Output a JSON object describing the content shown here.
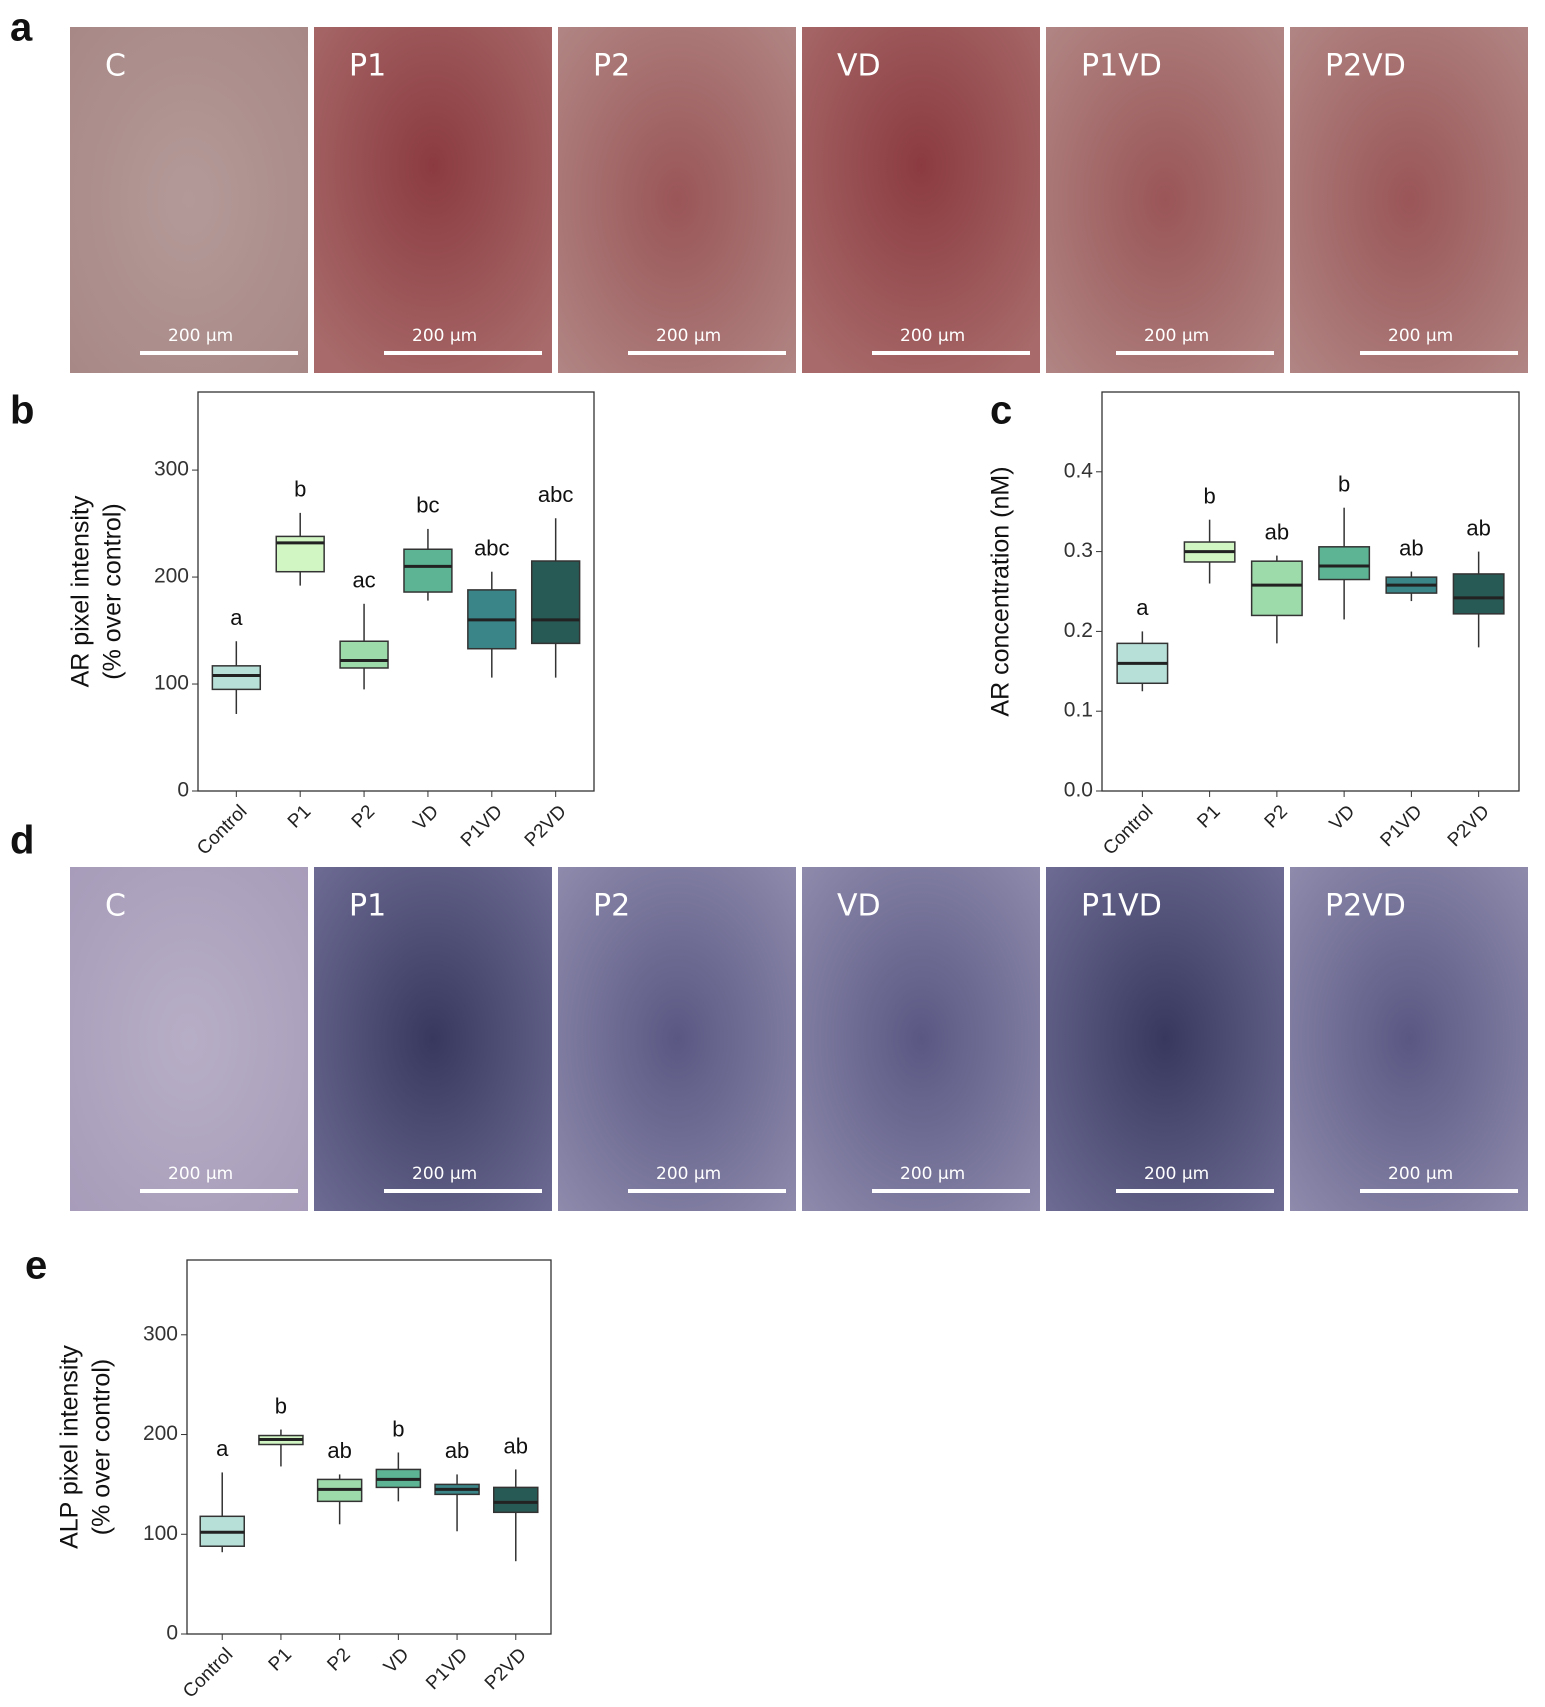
{
  "panel_a": {
    "letter": "a",
    "labels": [
      "C",
      "P1",
      "P2",
      "VD",
      "P1VD",
      "P2VD"
    ],
    "scale_bars": [
      "200 µm",
      "200 µm",
      "200 µm",
      "200 µm",
      "200 µm",
      "200 µm"
    ]
  },
  "panel_d": {
    "letter": "d",
    "labels": [
      "C",
      "P1",
      "P2",
      "VD",
      "P1VD",
      "P2VD"
    ],
    "scale_bars": [
      "200 µm",
      "200 µm",
      "200 µm",
      "200 µm",
      "200 µm",
      "200 µm"
    ]
  },
  "chart_data": [
    {
      "type": "box",
      "panel": "b",
      "ylabel": [
        "AR pixel intensity",
        "(% over control)"
      ],
      "categories": [
        "Control",
        "P1",
        "P2",
        "VD",
        "P1VD",
        "P2VD"
      ],
      "whisker_low": [
        72,
        192,
        95,
        178,
        106,
        106
      ],
      "q1": [
        95,
        205,
        115,
        186,
        133,
        138
      ],
      "median": [
        108,
        232,
        122,
        210,
        160,
        160
      ],
      "q3": [
        117,
        238,
        140,
        226,
        188,
        215
      ],
      "whisker_high": [
        140,
        260,
        175,
        245,
        205,
        255
      ],
      "letters": [
        "a",
        "b",
        "ac",
        "bc",
        "abc",
        "abc"
      ],
      "colors": [
        "#b7e0d8",
        "#d2f5c4",
        "#9edbaa",
        "#5cb494",
        "#3a8587",
        "#285a55"
      ],
      "ylim": [
        0,
        373
      ],
      "yticks": [
        0,
        100,
        200,
        300
      ]
    },
    {
      "type": "box",
      "panel": "c",
      "ylabel": [
        "AR concentration (nM)"
      ],
      "categories": [
        "Control",
        "P1",
        "P2",
        "VD",
        "P1VD",
        "P2VD"
      ],
      "whisker_low": [
        0.125,
        0.26,
        0.185,
        0.215,
        0.238,
        0.18
      ],
      "q1": [
        0.135,
        0.287,
        0.22,
        0.265,
        0.248,
        0.222
      ],
      "median": [
        0.16,
        0.3,
        0.258,
        0.282,
        0.258,
        0.242
      ],
      "q3": [
        0.185,
        0.312,
        0.288,
        0.306,
        0.268,
        0.272
      ],
      "whisker_high": [
        0.2,
        0.34,
        0.295,
        0.355,
        0.275,
        0.3
      ],
      "letters": [
        "a",
        "b",
        "ab",
        "b",
        "ab",
        "ab"
      ],
      "colors": [
        "#b7e0d8",
        "#d2f5c4",
        "#9edbaa",
        "#5cb494",
        "#3a8587",
        "#285a55"
      ],
      "ylim": [
        0,
        0.5
      ],
      "yticks": [
        {
          "value": 0,
          "label": "0.0"
        },
        0.1,
        0.2,
        0.3,
        0.4
      ]
    },
    {
      "type": "box",
      "panel": "e",
      "ylabel": [
        "ALP pixel intensity",
        "(% over control)"
      ],
      "categories": [
        "Control",
        "P1",
        "P2",
        "VD",
        "P1VD",
        "P2VD"
      ],
      "whisker_low": [
        82,
        168,
        110,
        133,
        103,
        73
      ],
      "q1": [
        88,
        190,
        133,
        147,
        140,
        122
      ],
      "median": [
        102,
        195,
        145,
        155,
        145,
        132
      ],
      "q3": [
        118,
        199,
        155,
        165,
        150,
        147
      ],
      "whisker_high": [
        162,
        205,
        160,
        182,
        160,
        165
      ],
      "letters": [
        "a",
        "b",
        "ab",
        "b",
        "ab",
        "ab"
      ],
      "colors": [
        "#b7e0d8",
        "#d2f5c4",
        "#9edbaa",
        "#5cb494",
        "#3a8587",
        "#285a55"
      ],
      "ylim": [
        0,
        375
      ],
      "yticks": [
        0,
        100,
        200,
        300
      ]
    }
  ]
}
